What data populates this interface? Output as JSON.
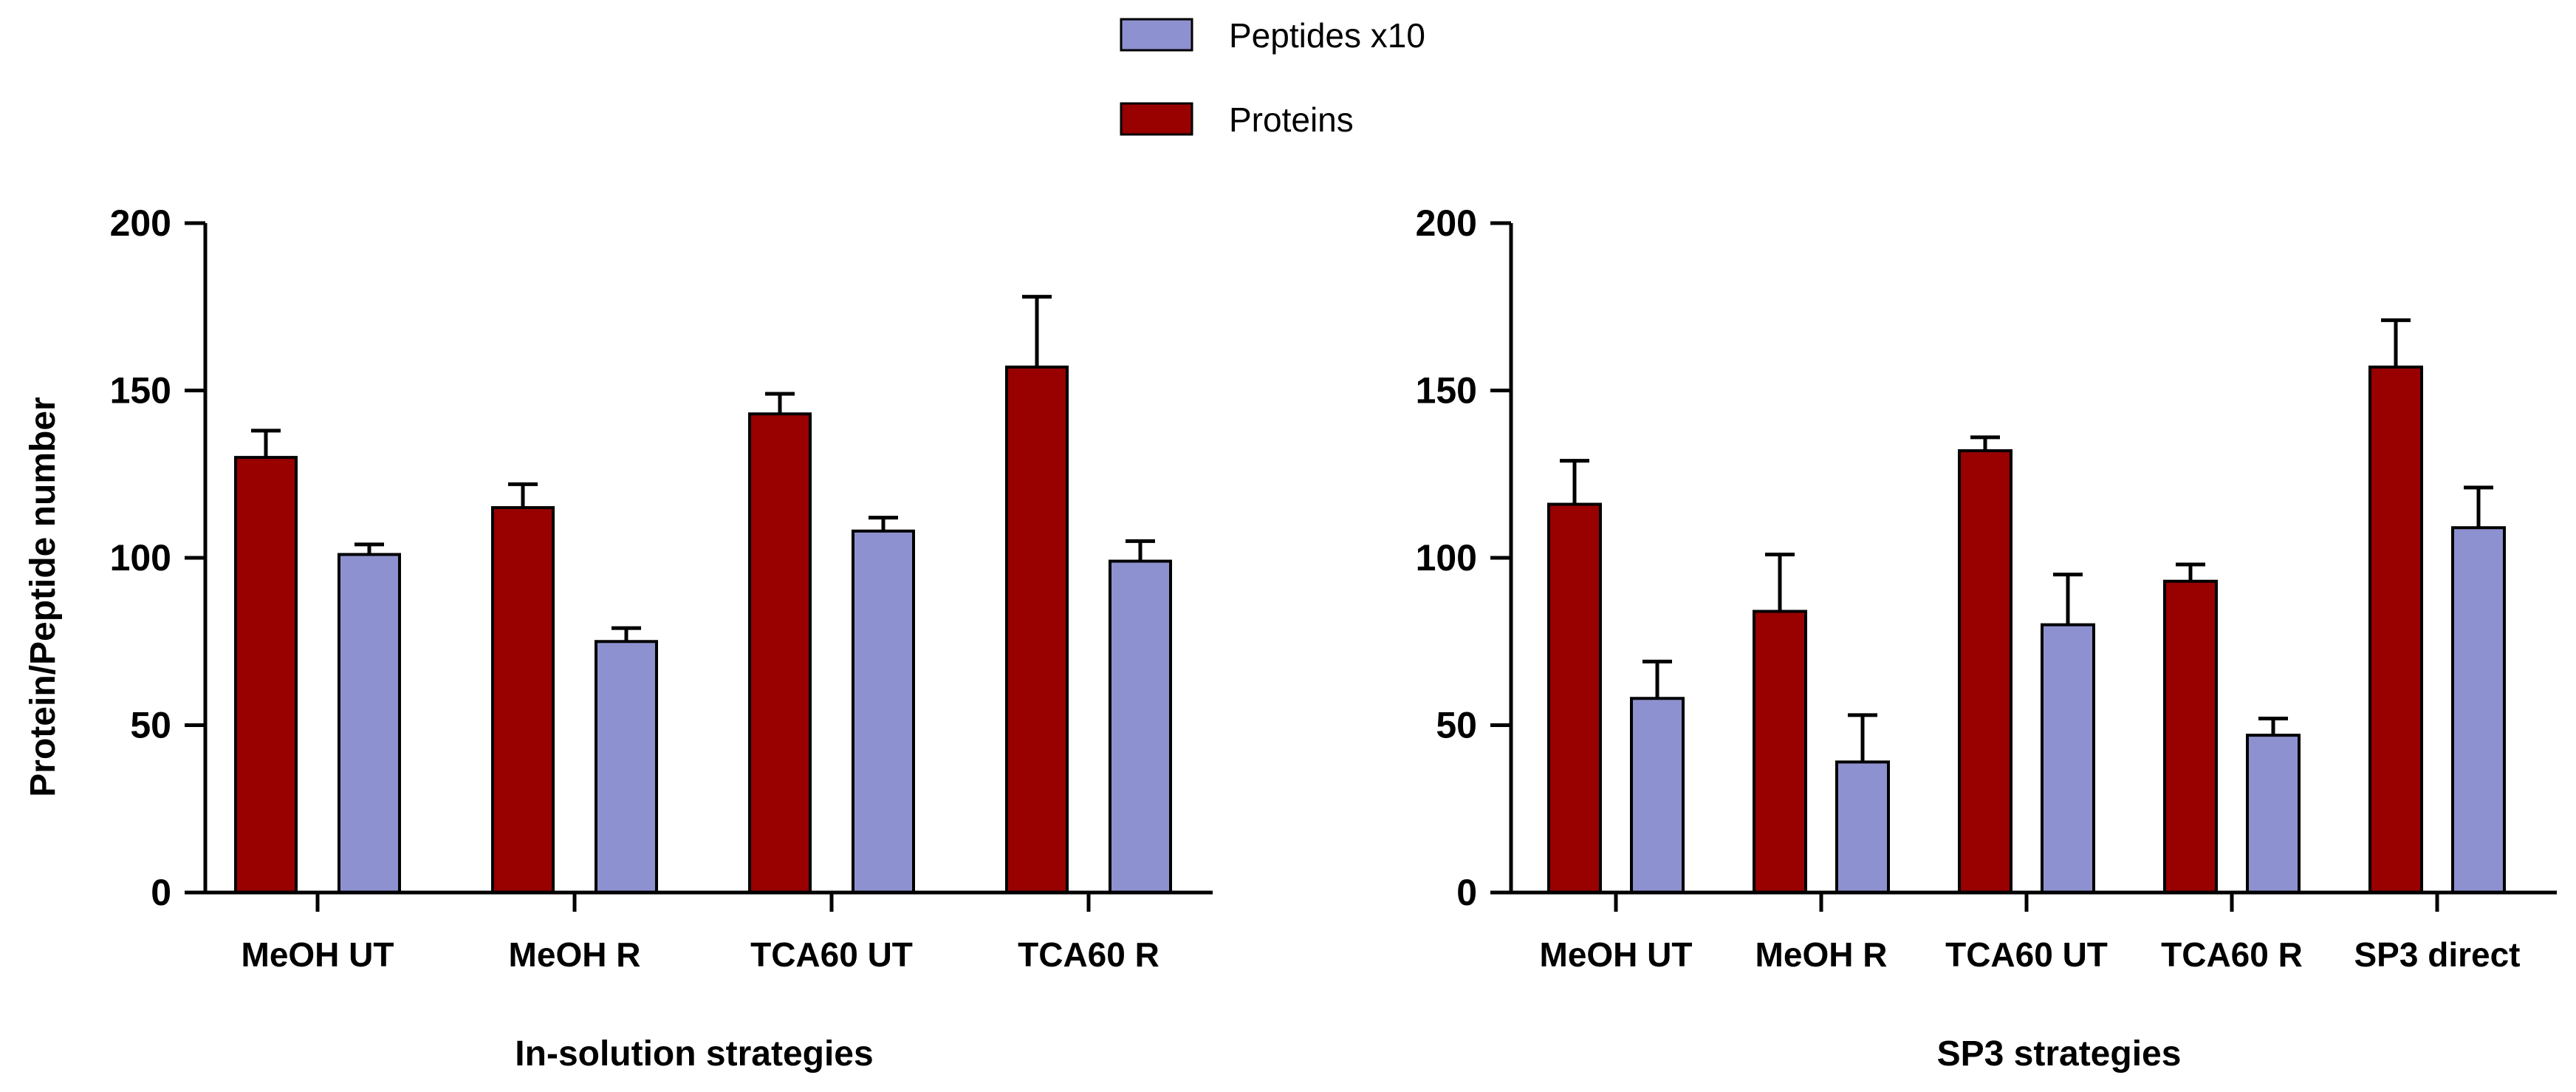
{
  "legend": [
    {
      "label": "Peptides x10",
      "color": "#8e91cf"
    },
    {
      "label": "Proteins",
      "color": "#990000"
    }
  ],
  "colors": {
    "proteins": "#990000",
    "peptides": "#8e91cf",
    "axis": "#000000"
  },
  "ylabel": "Protein/Peptide number",
  "chart_data": [
    {
      "type": "bar",
      "title": "",
      "xlabel": "In-solution strategies",
      "ylabel": "Protein/Peptide number",
      "ylim": [
        0,
        200
      ],
      "yticks": [
        0,
        50,
        100,
        150,
        200
      ],
      "categories": [
        "MeOH UT",
        "MeOH R",
        "TCA60 UT",
        "TCA60 R"
      ],
      "series": [
        {
          "name": "Proteins",
          "values": [
            130,
            115,
            143,
            157
          ],
          "errors": [
            8,
            7,
            6,
            21
          ]
        },
        {
          "name": "Peptides x10",
          "values": [
            101,
            75,
            108,
            99
          ],
          "errors": [
            3,
            4,
            4,
            6
          ]
        }
      ]
    },
    {
      "type": "bar",
      "title": "",
      "xlabel": "SP3 strategies",
      "ylabel": "",
      "ylim": [
        0,
        200
      ],
      "yticks": [
        0,
        50,
        100,
        150,
        200
      ],
      "categories": [
        "MeOH UT",
        "MeOH R",
        "TCA60 UT",
        "TCA60 R",
        "SP3 direct"
      ],
      "series": [
        {
          "name": "Proteins",
          "values": [
            116,
            84,
            132,
            93,
            157
          ],
          "errors": [
            13,
            17,
            4,
            5,
            14
          ]
        },
        {
          "name": "Peptides x10",
          "values": [
            58,
            39,
            80,
            47,
            109
          ],
          "errors": [
            11,
            14,
            15,
            5,
            12
          ]
        }
      ]
    }
  ]
}
